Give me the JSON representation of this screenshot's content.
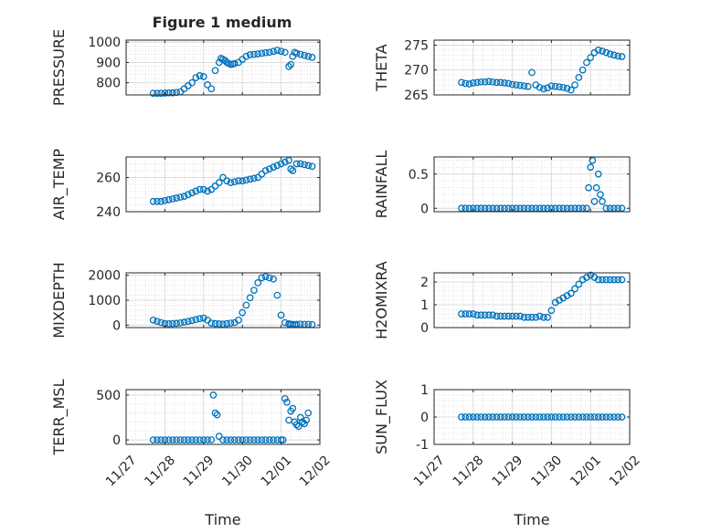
{
  "figure": {
    "title": "Figure 1 medium",
    "marker_color": "#0072bd"
  },
  "chart_data": [
    {
      "type": "scatter",
      "name": "pressure",
      "title": "Figure 1 medium",
      "ylabel": "PRESSURE",
      "xlabel": "",
      "ylim": [
        740,
        1010
      ],
      "yticks": [
        800,
        900,
        1000
      ],
      "ytick_labels": [
        "800",
        "900",
        "1000"
      ],
      "xlim": [
        0,
        5
      ],
      "xticks": [
        0,
        1,
        2,
        3,
        4,
        5
      ],
      "xtick_labels": [],
      "series": [
        {
          "name": "PRESSURE",
          "x": [
            0.7,
            0.8,
            0.9,
            1.0,
            1.1,
            1.2,
            1.3,
            1.4,
            1.5,
            1.6,
            1.7,
            1.8,
            1.9,
            2.0,
            2.1,
            2.2,
            2.3,
            2.4,
            2.45,
            2.5,
            2.55,
            2.6,
            2.65,
            2.7,
            2.75,
            2.8,
            2.9,
            3.0,
            3.1,
            3.2,
            3.3,
            3.4,
            3.5,
            3.6,
            3.7,
            3.8,
            3.9,
            4.0,
            4.1,
            4.2,
            4.25,
            4.3,
            4.35,
            4.4,
            4.5,
            4.6,
            4.7,
            4.8
          ],
          "y": [
            748,
            748,
            748,
            749,
            750,
            750,
            752,
            755,
            770,
            785,
            800,
            825,
            835,
            830,
            790,
            770,
            860,
            900,
            920,
            915,
            910,
            900,
            895,
            890,
            892,
            895,
            900,
            915,
            930,
            938,
            940,
            942,
            945,
            948,
            950,
            955,
            960,
            955,
            950,
            880,
            890,
            930,
            950,
            945,
            940,
            935,
            930,
            925
          ]
        }
      ]
    },
    {
      "type": "scatter",
      "name": "theta",
      "title": "",
      "ylabel": "THETA",
      "xlabel": "",
      "ylim": [
        265,
        276
      ],
      "yticks": [
        265,
        270,
        275
      ],
      "ytick_labels": [
        "265",
        "270",
        "275"
      ],
      "xlim": [
        0,
        5
      ],
      "xticks": [
        0,
        1,
        2,
        3,
        4,
        5
      ],
      "xtick_labels": [],
      "series": [
        {
          "name": "THETA",
          "x": [
            0.7,
            0.8,
            0.9,
            1.0,
            1.1,
            1.2,
            1.3,
            1.4,
            1.5,
            1.6,
            1.7,
            1.8,
            1.9,
            2.0,
            2.1,
            2.2,
            2.3,
            2.4,
            2.5,
            2.6,
            2.7,
            2.8,
            2.9,
            3.0,
            3.1,
            3.2,
            3.3,
            3.4,
            3.5,
            3.6,
            3.7,
            3.8,
            3.9,
            4.0,
            4.1,
            4.2,
            4.3,
            4.4,
            4.5,
            4.6,
            4.7,
            4.8
          ],
          "y": [
            267.5,
            267.3,
            267.2,
            267.4,
            267.5,
            267.6,
            267.6,
            267.7,
            267.6,
            267.5,
            267.5,
            267.4,
            267.3,
            267.1,
            267.0,
            266.9,
            266.8,
            266.7,
            269.5,
            267.0,
            266.5,
            266.2,
            266.4,
            266.8,
            266.7,
            266.6,
            266.5,
            266.3,
            266.0,
            267.0,
            268.5,
            270.0,
            271.5,
            272.5,
            273.5,
            274.0,
            273.8,
            273.5,
            273.2,
            273.0,
            272.8,
            272.7
          ]
        }
      ]
    },
    {
      "type": "scatter",
      "name": "air_temp",
      "title": "",
      "ylabel": "AIR_TEMP",
      "xlabel": "",
      "ylim": [
        240,
        272
      ],
      "yticks": [
        240,
        260
      ],
      "ytick_labels": [
        "240",
        "260"
      ],
      "xlim": [
        0,
        5
      ],
      "xticks": [
        0,
        1,
        2,
        3,
        4,
        5
      ],
      "xtick_labels": [],
      "series": [
        {
          "name": "AIR_TEMP",
          "x": [
            0.7,
            0.8,
            0.9,
            1.0,
            1.1,
            1.2,
            1.3,
            1.4,
            1.5,
            1.6,
            1.7,
            1.8,
            1.9,
            2.0,
            2.1,
            2.2,
            2.3,
            2.4,
            2.5,
            2.6,
            2.7,
            2.8,
            2.9,
            3.0,
            3.1,
            3.2,
            3.3,
            3.4,
            3.5,
            3.6,
            3.7,
            3.8,
            3.9,
            4.0,
            4.1,
            4.2,
            4.25,
            4.3,
            4.4,
            4.5,
            4.6,
            4.7,
            4.8
          ],
          "y": [
            246,
            246,
            246,
            246.5,
            247,
            247.5,
            248,
            248.5,
            249,
            250,
            251,
            252,
            253,
            253,
            252,
            253,
            255,
            257,
            260,
            258,
            257,
            257.5,
            258,
            258,
            258.5,
            259,
            259.5,
            260,
            262,
            264,
            265,
            266,
            267,
            268,
            269,
            270,
            265,
            264,
            268,
            268,
            267.5,
            267,
            266.5
          ]
        }
      ]
    },
    {
      "type": "scatter",
      "name": "rainfall",
      "title": "",
      "ylabel": "RAINFALL",
      "xlabel": "",
      "ylim": [
        -0.05,
        0.75
      ],
      "yticks": [
        0,
        0.5
      ],
      "ytick_labels": [
        "0",
        "0.5"
      ],
      "xlim": [
        0,
        5
      ],
      "xticks": [
        0,
        1,
        2,
        3,
        4,
        5
      ],
      "xtick_labels": [],
      "series": [
        {
          "name": "RAINFALL",
          "x": [
            0.7,
            0.8,
            0.9,
            1.0,
            1.1,
            1.2,
            1.3,
            1.4,
            1.5,
            1.6,
            1.7,
            1.8,
            1.9,
            2.0,
            2.1,
            2.2,
            2.3,
            2.4,
            2.5,
            2.6,
            2.7,
            2.8,
            2.9,
            3.0,
            3.1,
            3.2,
            3.3,
            3.4,
            3.5,
            3.6,
            3.7,
            3.8,
            3.9,
            3.95,
            4.0,
            4.05,
            4.1,
            4.15,
            4.2,
            4.25,
            4.3,
            4.4,
            4.5,
            4.6,
            4.7,
            4.8
          ],
          "y": [
            0,
            0,
            0,
            0,
            0,
            0,
            0,
            0,
            0,
            0,
            0,
            0,
            0,
            0,
            0,
            0,
            0,
            0,
            0,
            0,
            0,
            0,
            0,
            0,
            0,
            0,
            0,
            0,
            0,
            0,
            0,
            0,
            0,
            0.3,
            0.6,
            0.7,
            0.1,
            0.3,
            0.5,
            0.2,
            0.1,
            0,
            0,
            0,
            0,
            0
          ]
        }
      ]
    },
    {
      "type": "scatter",
      "name": "mixdepth",
      "title": "",
      "ylabel": "MIXDEPTH",
      "xlabel": "",
      "ylim": [
        -100,
        2100
      ],
      "yticks": [
        0,
        1000,
        2000
      ],
      "ytick_labels": [
        "0",
        "1000",
        "2000"
      ],
      "xlim": [
        0,
        5
      ],
      "xticks": [
        0,
        1,
        2,
        3,
        4,
        5
      ],
      "xtick_labels": [],
      "series": [
        {
          "name": "MIXDEPTH",
          "x": [
            0.7,
            0.8,
            0.9,
            1.0,
            1.1,
            1.2,
            1.3,
            1.4,
            1.5,
            1.6,
            1.7,
            1.8,
            1.9,
            2.0,
            2.1,
            2.2,
            2.3,
            2.4,
            2.5,
            2.6,
            2.7,
            2.8,
            2.9,
            3.0,
            3.1,
            3.2,
            3.3,
            3.4,
            3.5,
            3.6,
            3.7,
            3.8,
            3.9,
            4.0,
            4.1,
            4.2,
            4.25,
            4.3,
            4.35,
            4.4,
            4.5,
            4.6,
            4.7,
            4.8
          ],
          "y": [
            200,
            150,
            100,
            60,
            50,
            60,
            70,
            90,
            120,
            150,
            180,
            220,
            260,
            280,
            200,
            80,
            60,
            50,
            40,
            60,
            80,
            100,
            200,
            500,
            800,
            1100,
            1400,
            1700,
            1900,
            1950,
            1900,
            1850,
            1200,
            400,
            100,
            50,
            30,
            30,
            20,
            30,
            40,
            30,
            30,
            20
          ]
        }
      ]
    },
    {
      "type": "scatter",
      "name": "h2omixra",
      "title": "",
      "ylabel": "H2OMIXRA",
      "xlabel": "",
      "ylim": [
        0,
        2.4
      ],
      "yticks": [
        0,
        1,
        2
      ],
      "ytick_labels": [
        "0",
        "1",
        "2"
      ],
      "xlim": [
        0,
        5
      ],
      "xticks": [
        0,
        1,
        2,
        3,
        4,
        5
      ],
      "xtick_labels": [],
      "series": [
        {
          "name": "H2OMIXRA",
          "x": [
            0.7,
            0.8,
            0.9,
            1.0,
            1.1,
            1.2,
            1.3,
            1.4,
            1.5,
            1.6,
            1.7,
            1.8,
            1.9,
            2.0,
            2.1,
            2.2,
            2.3,
            2.4,
            2.5,
            2.6,
            2.7,
            2.8,
            2.9,
            3.0,
            3.1,
            3.2,
            3.3,
            3.4,
            3.5,
            3.6,
            3.7,
            3.8,
            3.9,
            4.0,
            4.1,
            4.2,
            4.3,
            4.4,
            4.5,
            4.6,
            4.7,
            4.8
          ],
          "y": [
            0.6,
            0.6,
            0.6,
            0.6,
            0.55,
            0.55,
            0.55,
            0.55,
            0.55,
            0.5,
            0.5,
            0.5,
            0.5,
            0.5,
            0.5,
            0.5,
            0.45,
            0.45,
            0.45,
            0.45,
            0.5,
            0.45,
            0.45,
            0.75,
            1.1,
            1.2,
            1.3,
            1.4,
            1.5,
            1.7,
            1.9,
            2.1,
            2.2,
            2.3,
            2.2,
            2.1,
            2.1,
            2.1,
            2.1,
            2.1,
            2.1,
            2.1
          ]
        }
      ]
    },
    {
      "type": "scatter",
      "name": "terr_msl",
      "title": "",
      "ylabel": "TERR_MSL",
      "xlabel": "Time",
      "ylim": [
        -50,
        560
      ],
      "yticks": [
        0,
        500
      ],
      "ytick_labels": [
        "0",
        "500"
      ],
      "xlim": [
        0,
        5
      ],
      "xticks": [
        0,
        1,
        2,
        3,
        4,
        5
      ],
      "xtick_labels": [
        "11/27",
        "11/28",
        "11/29",
        "11/30",
        "12/01",
        "12/02"
      ],
      "series": [
        {
          "name": "TERR_MSL",
          "x": [
            0.7,
            0.8,
            0.9,
            1.0,
            1.1,
            1.2,
            1.3,
            1.4,
            1.5,
            1.6,
            1.7,
            1.8,
            1.9,
            2.0,
            2.1,
            2.2,
            2.25,
            2.3,
            2.35,
            2.4,
            2.5,
            2.6,
            2.7,
            2.8,
            2.9,
            3.0,
            3.1,
            3.2,
            3.3,
            3.4,
            3.5,
            3.6,
            3.7,
            3.8,
            3.9,
            4.0,
            4.05,
            4.1,
            4.15,
            4.2,
            4.25,
            4.3,
            4.35,
            4.4,
            4.45,
            4.5,
            4.55,
            4.6,
            4.65,
            4.7
          ],
          "y": [
            0,
            0,
            0,
            0,
            0,
            0,
            0,
            0,
            0,
            0,
            0,
            0,
            0,
            0,
            0,
            0,
            500,
            300,
            280,
            40,
            0,
            0,
            0,
            0,
            0,
            0,
            0,
            0,
            0,
            0,
            0,
            0,
            0,
            0,
            0,
            0,
            0,
            460,
            420,
            220,
            320,
            350,
            200,
            170,
            150,
            250,
            200,
            180,
            220,
            300
          ]
        }
      ]
    },
    {
      "type": "scatter",
      "name": "sun_flux",
      "title": "",
      "ylabel": "SUN_FLUX",
      "xlabel": "Time",
      "ylim": [
        -1,
        1
      ],
      "yticks": [
        -1,
        0,
        1
      ],
      "ytick_labels": [
        "-1",
        "0",
        "1"
      ],
      "xlim": [
        0,
        5
      ],
      "xticks": [
        0,
        1,
        2,
        3,
        4,
        5
      ],
      "xtick_labels": [
        "11/27",
        "11/28",
        "11/29",
        "11/30",
        "12/01",
        "12/02"
      ],
      "series": [
        {
          "name": "SUN_FLUX",
          "x": [
            0.7,
            0.8,
            0.9,
            1.0,
            1.1,
            1.2,
            1.3,
            1.4,
            1.5,
            1.6,
            1.7,
            1.8,
            1.9,
            2.0,
            2.1,
            2.2,
            2.3,
            2.4,
            2.5,
            2.6,
            2.7,
            2.8,
            2.9,
            3.0,
            3.1,
            3.2,
            3.3,
            3.4,
            3.5,
            3.6,
            3.7,
            3.8,
            3.9,
            4.0,
            4.1,
            4.2,
            4.3,
            4.4,
            4.5,
            4.6,
            4.7,
            4.8
          ],
          "y": [
            0,
            0,
            0,
            0,
            0,
            0,
            0,
            0,
            0,
            0,
            0,
            0,
            0,
            0,
            0,
            0,
            0,
            0,
            0,
            0,
            0,
            0,
            0,
            0,
            0,
            0,
            0,
            0,
            0,
            0,
            0,
            0,
            0,
            0,
            0,
            0,
            0,
            0,
            0,
            0,
            0,
            0
          ]
        }
      ]
    }
  ]
}
